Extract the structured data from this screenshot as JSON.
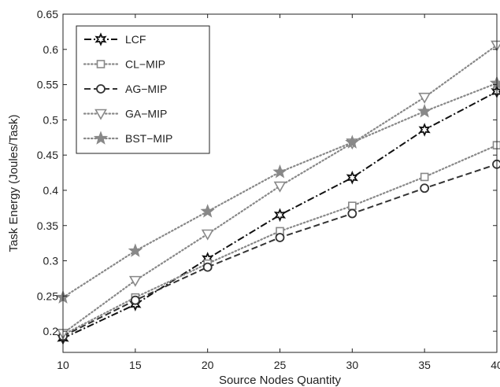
{
  "chart_data": {
    "type": "line",
    "title": "",
    "xlabel": "Source Nodes Quantity",
    "ylabel": "Task Energy (Joules/Task)",
    "xlim": [
      10,
      40
    ],
    "ylim": [
      0.17,
      0.65
    ],
    "x_ticks": [
      10,
      15,
      20,
      25,
      30,
      35,
      40
    ],
    "y_ticks": [
      0.2,
      0.25,
      0.3,
      0.35,
      0.4,
      0.45,
      0.5,
      0.55,
      0.6,
      0.65
    ],
    "y_tick_labels": [
      "0.2",
      "0.25",
      "0.3",
      "0.35",
      "0.4",
      "0.45",
      "0.5",
      "0.55",
      "0.6",
      "0.65"
    ],
    "grid": false,
    "legend_position": "top-left",
    "x": [
      10,
      15,
      20,
      25,
      30,
      35,
      40
    ],
    "series": [
      {
        "name": "LCF",
        "values": [
          0.19,
          0.238,
          0.303,
          0.365,
          0.418,
          0.486,
          0.54
        ],
        "color": "#111111",
        "dash": "dashdot",
        "marker": "hexstar"
      },
      {
        "name": "CL−MIP",
        "values": [
          0.195,
          0.248,
          0.296,
          0.342,
          0.378,
          0.419,
          0.464
        ],
        "color": "#888888",
        "dash": "dotted",
        "marker": "square"
      },
      {
        "name": "AG−MIP",
        "values": [
          0.193,
          0.244,
          0.291,
          0.333,
          0.367,
          0.403,
          0.437
        ],
        "color": "#333333",
        "dash": "dashed",
        "marker": "circle"
      },
      {
        "name": "GA−MIP",
        "values": [
          0.197,
          0.272,
          0.338,
          0.406,
          0.467,
          0.532,
          0.606
        ],
        "color": "#888888",
        "dash": "dotted",
        "marker": "triangle-down"
      },
      {
        "name": "BST−MIP",
        "values": [
          0.248,
          0.314,
          0.37,
          0.426,
          0.468,
          0.512,
          0.552
        ],
        "color": "#888888",
        "dash": "dotted",
        "marker": "star"
      }
    ]
  }
}
